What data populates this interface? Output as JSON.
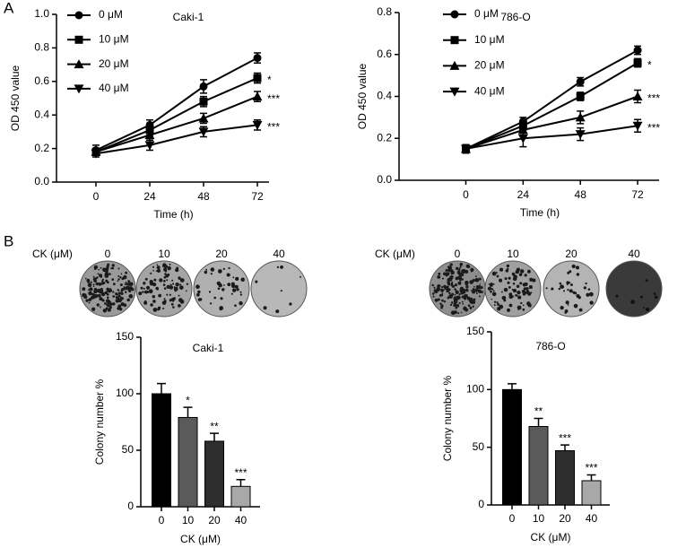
{
  "panels": [
    "A",
    "B"
  ],
  "colony_rows": [
    {
      "label": "CK (μM)",
      "doses": [
        "0",
        "10",
        "20",
        "40"
      ]
    },
    {
      "label": "CK (μM)",
      "doses": [
        "0",
        "10",
        "20",
        "40"
      ]
    }
  ],
  "chart_data": [
    {
      "type": "line",
      "title": "Caki-1",
      "x_label": "Time (h)",
      "y_label": "OD 450 value",
      "x": [
        0,
        24,
        48,
        72
      ],
      "xlim": [
        -17.6,
        77.2
      ],
      "xticks": [
        0,
        24,
        48,
        72
      ],
      "ylim": [
        0,
        1
      ],
      "yticks": [
        {
          "value": 0,
          "label": "0.0"
        },
        0.2,
        0.4,
        0.6,
        0.8,
        {
          "value": 1,
          "label": "1.0"
        }
      ],
      "legend": "upper left",
      "series": [
        {
          "name": "0 μM",
          "color": "#000000",
          "marker": "circle",
          "values": [
            0.19,
            0.34,
            0.57,
            0.74
          ],
          "errors": [
            0.03,
            0.03,
            0.04,
            0.03
          ]
        },
        {
          "name": "10 μM",
          "color": "#000000",
          "marker": "square",
          "values": [
            0.18,
            0.31,
            0.48,
            0.62
          ],
          "errors": [
            0.02,
            0.03,
            0.03,
            0.03
          ],
          "annotation": "*"
        },
        {
          "name": "20 μM",
          "color": "#000000",
          "marker": "triangle-up",
          "values": [
            0.18,
            0.28,
            0.38,
            0.51
          ],
          "errors": [
            0.02,
            0.03,
            0.03,
            0.03
          ],
          "annotation": "***"
        },
        {
          "name": "40 μM",
          "color": "#000000",
          "marker": "triangle-down",
          "values": [
            0.17,
            0.22,
            0.3,
            0.34
          ],
          "errors": [
            0.02,
            0.03,
            0.03,
            0.03
          ],
          "annotation": "***"
        }
      ]
    },
    {
      "type": "line",
      "title": "786-O",
      "x_label": "Time (h)",
      "y_label": "OD 450 value",
      "x": [
        0,
        24,
        48,
        72
      ],
      "xlim": [
        -28,
        81
      ],
      "xticks": [
        0,
        24,
        48,
        72
      ],
      "ylim": [
        0,
        0.8
      ],
      "yticks": [
        {
          "value": 0,
          "label": "0.0"
        },
        0.2,
        0.4,
        0.6,
        0.8
      ],
      "legend": "upper left",
      "series": [
        {
          "name": "0 μM",
          "color": "#000000",
          "marker": "circle",
          "values": [
            0.15,
            0.28,
            0.47,
            0.62
          ],
          "errors": [
            0.02,
            0.02,
            0.02,
            0.02
          ]
        },
        {
          "name": "10 μM",
          "color": "#000000",
          "marker": "square",
          "values": [
            0.15,
            0.26,
            0.4,
            0.56
          ],
          "errors": [
            0.02,
            0.02,
            0.02,
            0.02
          ],
          "annotation": "*"
        },
        {
          "name": "20 μM",
          "color": "#000000",
          "marker": "triangle-up",
          "values": [
            0.15,
            0.24,
            0.3,
            0.4
          ],
          "errors": [
            0.02,
            0.03,
            0.03,
            0.03
          ],
          "annotation": "***"
        },
        {
          "name": "40 μM",
          "color": "#000000",
          "marker": "triangle-down",
          "values": [
            0.15,
            0.2,
            0.22,
            0.26
          ],
          "errors": [
            0.02,
            0.04,
            0.03,
            0.03
          ],
          "annotation": "***"
        }
      ]
    },
    {
      "type": "bar",
      "title": "Caki-1",
      "x_label": "CK (μM)",
      "y_label": "Colony number %",
      "categories": [
        "0",
        "10",
        "20",
        "40"
      ],
      "values": [
        100,
        79,
        58,
        18
      ],
      "errors": [
        9,
        9,
        7,
        6
      ],
      "annotations": [
        null,
        "*",
        "**",
        "***"
      ],
      "colors": [
        "#000000",
        "#5a5a5a",
        "#2e2e2e",
        "#a8a8a8"
      ],
      "ylim": [
        0,
        150
      ],
      "yticks": [
        0,
        50,
        100,
        150
      ]
    },
    {
      "type": "bar",
      "title": "786-O",
      "x_label": "CK (μM)",
      "y_label": "Colony number %",
      "categories": [
        "0",
        "10",
        "20",
        "40"
      ],
      "values": [
        100,
        68,
        47,
        21
      ],
      "errors": [
        5,
        7,
        5,
        5
      ],
      "annotations": [
        null,
        "**",
        "***",
        "***"
      ],
      "colors": [
        "#000000",
        "#5a5a5a",
        "#2e2e2e",
        "#a8a8a8"
      ],
      "ylim": [
        0,
        150
      ],
      "yticks": [
        0,
        50,
        100,
        150
      ]
    }
  ]
}
